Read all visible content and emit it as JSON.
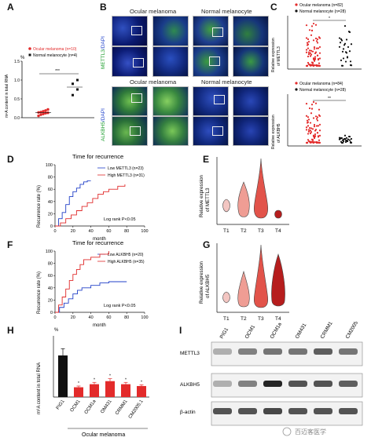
{
  "panels": {
    "A": {
      "letter": "A",
      "ylabel": "m⁶A content in total RNA",
      "unit": "%",
      "legend": [
        "Ocular melanoma (n=10)",
        "Normal melanocyte (n=4)"
      ],
      "sig": "***",
      "yticks": [
        "0.0",
        "0.5",
        "1.0",
        "1.5"
      ],
      "colors": {
        "om": "#e32b2b",
        "nm": "#111111"
      }
    },
    "B": {
      "letter": "B",
      "col_titles": [
        "Ocular melanoma",
        "Normal melanocyte"
      ],
      "row_label_1": "METTL3",
      "row_label_2": "ALKBH5",
      "dapi": "/DAPI"
    },
    "C": {
      "letter": "C",
      "top_legend": [
        "Ocular melanoma (n=82)",
        "Normal melanocyte (n=28)"
      ],
      "top_ylabel": [
        "Relative expression",
        "of METTL3"
      ],
      "top_sig": "*",
      "bottom_legend": [
        "Ocular melanoma (n=84)",
        "Normal melanocyte (n=28)"
      ],
      "bottom_ylabel": [
        "Relative expression",
        "of ALKBH5"
      ],
      "bottom_sig": "**"
    },
    "D": {
      "letter": "D",
      "title": "Time for recurrence",
      "legend": [
        "Low METTL3 (n=23)",
        "High METTL3 (n=31)"
      ],
      "ylabel": "Recurrence rate (%)",
      "xlabel": "month",
      "stat": "Log rank P<0.05",
      "xticks": [
        "0",
        "20",
        "40",
        "60",
        "80",
        "100"
      ],
      "yticks": [
        "0",
        "20",
        "40",
        "60",
        "80",
        "100"
      ]
    },
    "E": {
      "letter": "E",
      "ylabel": [
        "Relative expression",
        "of METTL3"
      ],
      "groups": [
        "T1",
        "T2",
        "T3",
        "T4"
      ]
    },
    "F": {
      "letter": "F",
      "title": "Time for recurrence",
      "legend": [
        "Low ALKBH5 (n=20)",
        "High ALKBH5 (n=35)"
      ],
      "ylabel": "Recurrence rate (%)",
      "xlabel": "month",
      "stat": "Log rank P<0.05",
      "xticks": [
        "0",
        "20",
        "40",
        "60",
        "80",
        "100"
      ],
      "yticks": [
        "0",
        "20",
        "40",
        "60",
        "80",
        "100"
      ]
    },
    "G": {
      "letter": "G",
      "ylabel": [
        "Relative expression",
        "of ALKBH5"
      ],
      "groups": [
        "T1",
        "T2",
        "T3",
        "T4"
      ]
    },
    "H": {
      "letter": "H",
      "ylabel": "m⁶A content in total RNA",
      "unit": "%",
      "categories": [
        "PIG1",
        "OCM1",
        "OCM1a",
        "OM431",
        "CRMM1",
        "CM2005.1"
      ],
      "group_label": "Ocular melanoma",
      "star": "*"
    },
    "I": {
      "letter": "I",
      "lanes": [
        "PIG1",
        "OCM1",
        "OCM1a",
        "OM431",
        "CRMM1",
        "CM2005.1"
      ],
      "rows": [
        "METTL3",
        "ALKBH5",
        "β-actin"
      ]
    }
  },
  "watermark": "百迈客医学",
  "chart_data": [
    {
      "type": "scatter",
      "panel": "A",
      "categories": [
        "Ocular melanoma",
        "Normal melanocyte"
      ],
      "series": [
        {
          "name": "Ocular melanoma (n=10)",
          "values": [
            0.05,
            0.08,
            0.1,
            0.12,
            0.13,
            0.14,
            0.15,
            0.17,
            0.19,
            0.22
          ]
        },
        {
          "name": "Normal melanocyte (n=4)",
          "values": [
            0.6,
            0.75,
            0.9,
            1.0
          ]
        }
      ],
      "ylim": [
        0,
        1.5
      ]
    },
    {
      "type": "bar",
      "panel": "H",
      "categories": [
        "PIG1",
        "OCM1",
        "OCM1a",
        "OM431",
        "CRMM1",
        "CM2005.1"
      ],
      "values": [
        0.68,
        0.16,
        0.21,
        0.26,
        0.21,
        0.18
      ],
      "errors": [
        0.11,
        0.02,
        0.03,
        0.04,
        0.03,
        0.02
      ],
      "ylim": [
        0,
        1.0
      ]
    },
    {
      "type": "line",
      "panel": "D",
      "series": [
        {
          "name": "Low METTL3 (n=23)",
          "x": [
            0,
            4,
            8,
            12,
            16,
            20,
            24,
            28,
            32,
            36,
            40
          ],
          "values": [
            0,
            12,
            22,
            35,
            48,
            56,
            62,
            68,
            72,
            74,
            74
          ]
        },
        {
          "name": "High METTL3 (n=31)",
          "x": [
            0,
            6,
            12,
            18,
            24,
            30,
            36,
            42,
            48,
            54,
            60,
            70,
            78
          ],
          "values": [
            0,
            5,
            12,
            18,
            25,
            32,
            38,
            45,
            52,
            56,
            60,
            65,
            68
          ]
        }
      ],
      "xlim": [
        0,
        100
      ],
      "ylim": [
        0,
        100
      ]
    },
    {
      "type": "line",
      "panel": "F",
      "series": [
        {
          "name": "Low ALKBH5 (n=20)",
          "x": [
            0,
            5,
            10,
            15,
            20,
            25,
            30,
            40,
            50,
            60,
            70,
            80
          ],
          "values": [
            0,
            8,
            15,
            22,
            30,
            36,
            40,
            44,
            48,
            50,
            50,
            50
          ]
        },
        {
          "name": "High ALKBH5 (n=35)",
          "x": [
            0,
            4,
            8,
            12,
            16,
            20,
            24,
            28,
            32,
            40,
            50,
            60
          ],
          "values": [
            0,
            12,
            25,
            38,
            52,
            62,
            70,
            78,
            86,
            90,
            95,
            100
          ]
        }
      ],
      "xlim": [
        0,
        100
      ],
      "ylim": [
        0,
        100
      ]
    }
  ]
}
